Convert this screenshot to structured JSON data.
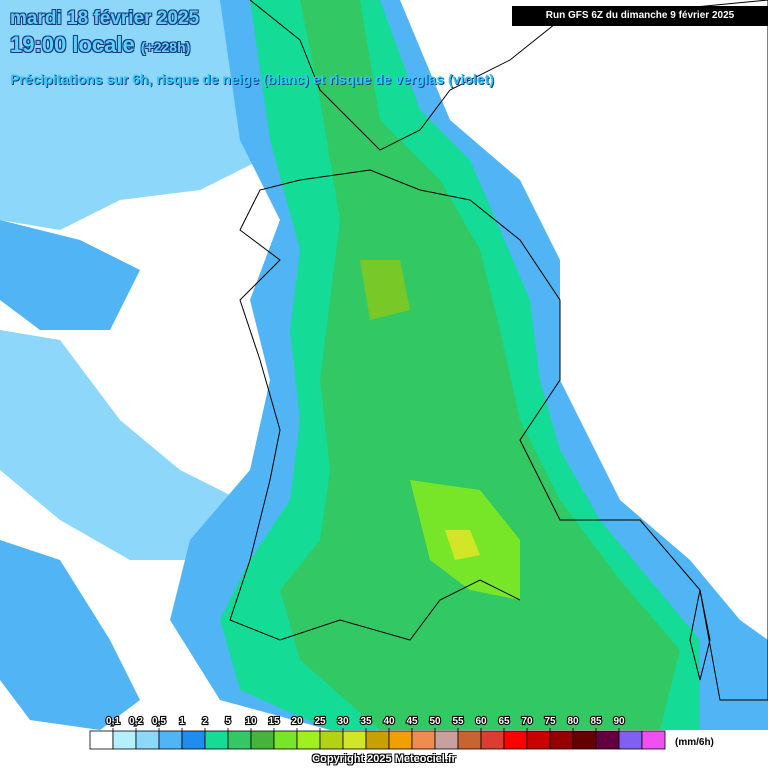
{
  "header": {
    "date": "mardi 18 février 2025",
    "time": "19:00 locale",
    "lead": "(+228h)",
    "description": "Précipitations sur 6h, risque de neige (blanc) et risque de verglas (violet)",
    "run": "Run GFS 6Z du dimanche 9 février 2025"
  },
  "legend": {
    "ticks": [
      {
        "value": 0.1,
        "label": "0,1"
      },
      {
        "value": 0.2,
        "label": "0,2"
      },
      {
        "value": 0.5,
        "label": "0,5"
      },
      1,
      2,
      5,
      10,
      15,
      20,
      25,
      30,
      35,
      40,
      45,
      50,
      55,
      60,
      65,
      70,
      75,
      80,
      85,
      90
    ],
    "colors": [
      "#ffffff",
      "#b4f0fa",
      "#8cd7fa",
      "#50b4f5",
      "#1e8cf0",
      "#14dc96",
      "#32c864",
      "#46b43c",
      "#78e628",
      "#a0f01e",
      "#b4d214",
      "#d2e628",
      "#c8a000",
      "#f0a000",
      "#f08c50",
      "#c8a0a0",
      "#c86432",
      "#dc3c32",
      "#ff0000",
      "#c80000",
      "#960000",
      "#640000",
      "#640040",
      "#8060f0",
      "#f050f0"
    ],
    "unit": "(mm/6h)"
  },
  "footer": {
    "copyright": "Copyright 2025 Meteociel.fr"
  }
}
